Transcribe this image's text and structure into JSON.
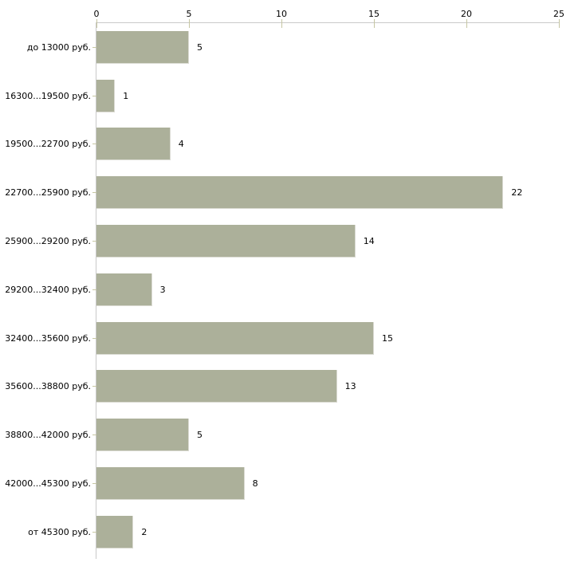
{
  "chart_data": {
    "type": "bar",
    "orientation": "horizontal",
    "title": "",
    "xlabel": "",
    "ylabel": "",
    "categories": [
      "до 13000 руб.",
      "16300...19500 руб.",
      "19500...22700 руб.",
      "22700...25900 руб.",
      "25900...29200 руб.",
      "29200...32400 руб.",
      "32400...35600 руб.",
      "35600...38800 руб.",
      "38800...42000 руб.",
      "42000...45300 руб.",
      "от 45300 руб."
    ],
    "values": [
      5,
      1,
      4,
      22,
      14,
      3,
      15,
      13,
      5,
      8,
      2
    ],
    "x_ticks": [
      0,
      5,
      10,
      15,
      20,
      25
    ],
    "xlim": [
      0,
      25
    ],
    "grid": false,
    "legend_position": "none",
    "bar_color": "#acb09a",
    "axis_line_color": "#c9c9c9",
    "tick_mark_color": "#c6c6a3",
    "label_color": "#000000",
    "background_color": "#ffffff"
  }
}
